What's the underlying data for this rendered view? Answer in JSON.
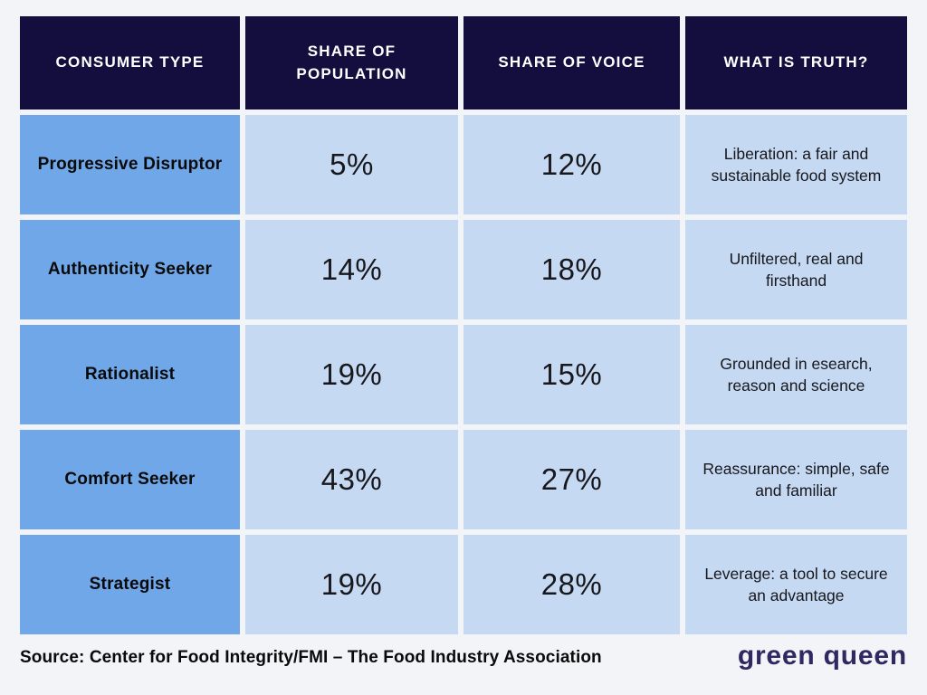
{
  "chart_data": {
    "type": "table",
    "columns": [
      "CONSUMER TYPE",
      "SHARE OF POPULATION",
      "SHARE OF VOICE",
      "WHAT IS TRUTH?"
    ],
    "rows": [
      [
        "Progressive Disruptor",
        "5%",
        "12%",
        "Liberation: a fair and sustainable food system"
      ],
      [
        "Authenticity Seeker",
        "14%",
        "18%",
        "Unfiltered, real and firsthand"
      ],
      [
        "Rationalist",
        "19%",
        "15%",
        "Grounded in esearch, reason and science"
      ],
      [
        "Comfort Seeker",
        "43%",
        "27%",
        "Reassurance: simple, safe and familiar"
      ],
      [
        "Strategist",
        "19%",
        "28%",
        "Leverage: a tool to secure an advantage"
      ]
    ],
    "layout_hints": {
      "header_position": "top",
      "label_column": "left",
      "grid": "cells separated by background-colored gutters"
    },
    "colors": {
      "header_bg": "#140e3e",
      "header_text": "#ffffff",
      "label_cell_bg": "#6fa7e8",
      "data_cell_bg": "#c5d9f3",
      "cell_text": "#0a0a0a",
      "page_bg": "#f3f4f7",
      "brand_text": "#2e2960"
    }
  },
  "footer": {
    "source": "Source: Center for Food Integrity/FMI – The Food Industry Association",
    "brand": "green queen"
  }
}
